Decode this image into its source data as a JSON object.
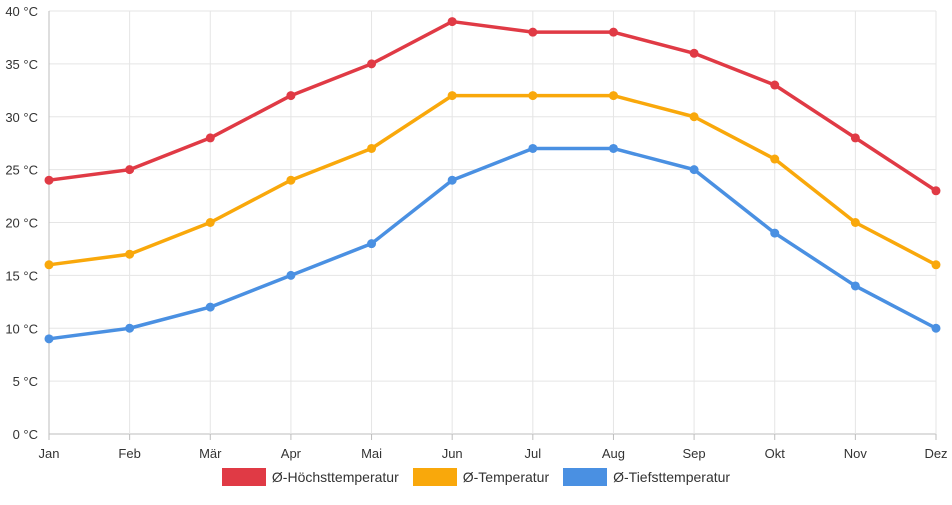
{
  "chart_data": {
    "type": "line",
    "categories": [
      "Jan",
      "Feb",
      "Mär",
      "Apr",
      "Mai",
      "Jun",
      "Jul",
      "Aug",
      "Sep",
      "Okt",
      "Nov",
      "Dez"
    ],
    "ylim": [
      0,
      40
    ],
    "yticks": [
      0,
      5,
      10,
      15,
      20,
      25,
      30,
      35,
      40
    ],
    "y_unit": "°C",
    "grid": true,
    "legend_position": "bottom",
    "series": [
      {
        "name": "Ø-Höchsttemperatur",
        "color": "#e03a45",
        "values": [
          24,
          25,
          28,
          32,
          35,
          39,
          38,
          38,
          36,
          33,
          28,
          23
        ]
      },
      {
        "name": "Ø-Temperatur",
        "color": "#f9a80b",
        "values": [
          16,
          17,
          20,
          24,
          27,
          32,
          32,
          32,
          30,
          26,
          20,
          16
        ]
      },
      {
        "name": "Ø-Tiefsttemperatur",
        "color": "#4a90e2",
        "values": [
          9,
          10,
          12,
          15,
          18,
          24,
          27,
          27,
          25,
          19,
          14,
          10
        ]
      }
    ]
  }
}
